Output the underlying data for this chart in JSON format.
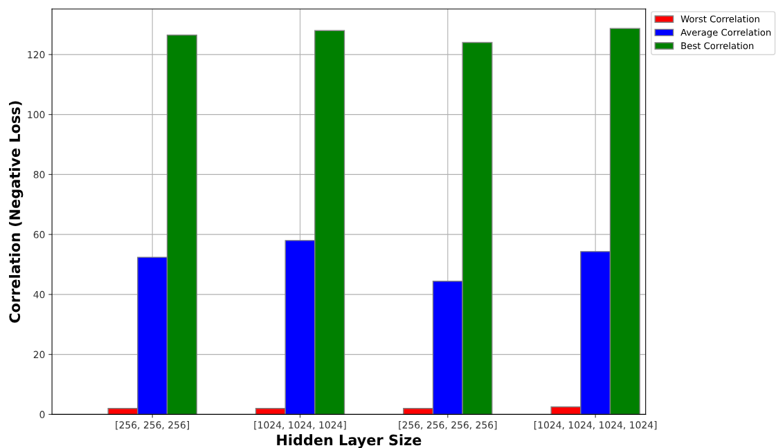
{
  "chart_data": {
    "type": "bar",
    "xlabel": "Hidden Layer Size",
    "ylabel": "Correlation (Negative Loss)",
    "categories": [
      "[256, 256, 256]",
      "[1024, 1024, 1024]",
      "[256, 256, 256, 256]",
      "[1024, 1024, 1024, 1024]"
    ],
    "series": [
      {
        "name": "Worst Correlation",
        "color": "#ff0000",
        "values": [
          2.0,
          2.0,
          2.0,
          2.5
        ]
      },
      {
        "name": "Average Correlation",
        "color": "#0000ff",
        "values": [
          52.4,
          58.0,
          44.4,
          54.3
        ]
      },
      {
        "name": "Best Correlation",
        "color": "#008000",
        "values": [
          126.5,
          128.0,
          124.0,
          128.7
        ]
      }
    ],
    "ylim": [
      0,
      135.2
    ],
    "yticks": [
      0,
      20,
      40,
      60,
      80,
      100,
      120
    ],
    "grid": true,
    "legend": "top right"
  }
}
